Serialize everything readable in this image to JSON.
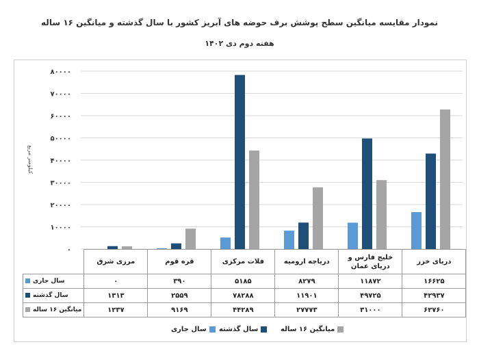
{
  "title": "نمودار مقایسه میانگین سطح پوشش برف حوضه های آبریز کشور با سال گذشته و میانگین ۱۶ ساله",
  "subtitle": "هفته دوم دی ۱۴۰۲",
  "chart_data": {
    "type": "bar",
    "categories": [
      "مرزی شرق",
      "قره قوم",
      "فلات مرکزی",
      "دریاچه ارومیه",
      "خلیج فارس و دریای عمان",
      "دریای خزر"
    ],
    "series": [
      {
        "name": "سال جاری",
        "color": "#5b9bd5",
        "values": [
          0,
          390,
          5185,
          8279,
          11872,
          16625
        ],
        "labels": [
          "۰",
          "۳۹۰",
          "۵۱۸۵",
          "۸۲۷۹",
          "۱۱۸۷۲",
          "۱۶۶۲۵"
        ]
      },
      {
        "name": "سال گذشته",
        "color": "#1f4e79",
        "values": [
          1313,
          2559,
          78288,
          11901,
          49725,
          42937
        ],
        "labels": [
          "۱۳۱۳",
          "۲۵۵۹",
          "۷۸۲۸۸",
          "۱۱۹۰۱",
          "۴۹۷۲۵",
          "۴۲۹۳۷"
        ]
      },
      {
        "name": "میانگین ۱۶ ساله",
        "color": "#a5a5a5",
        "values": [
          1237,
          9169,
          44289,
          27773,
          31000,
          62760
        ],
        "labels": [
          "۱۲۳۷",
          "۹۱۶۹",
          "۴۴۲۸۹",
          "۲۷۷۷۳",
          "۳۱۰۰۰",
          "۶۲۷۶۰"
        ]
      }
    ],
    "ylabel": "کیلومتر مربع",
    "ylim": [
      0,
      80000
    ],
    "yticks": [
      {
        "value": 0,
        "label": "۰"
      },
      {
        "value": 10000,
        "label": "۱۰۰۰۰"
      },
      {
        "value": 20000,
        "label": "۲۰۰۰۰"
      },
      {
        "value": 30000,
        "label": "۳۰۰۰۰"
      },
      {
        "value": 40000,
        "label": "۴۰۰۰۰"
      },
      {
        "value": 50000,
        "label": "۵۰۰۰۰"
      },
      {
        "value": 60000,
        "label": "۶۰۰۰۰"
      },
      {
        "value": 70000,
        "label": "۷۰۰۰۰"
      },
      {
        "value": 80000,
        "label": "۸۰۰۰۰"
      }
    ],
    "grid": true,
    "legend": "bottom",
    "data_table": true
  }
}
